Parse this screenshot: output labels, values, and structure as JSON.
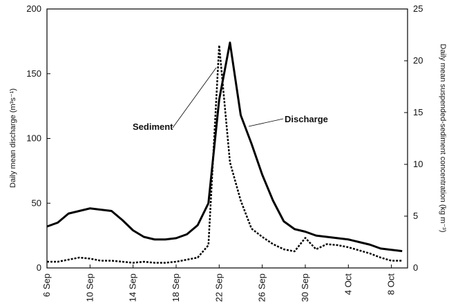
{
  "chart_data": {
    "type": "line",
    "x": [
      0,
      1,
      2,
      3,
      4,
      5,
      6,
      7,
      8,
      9,
      10,
      11,
      12,
      13,
      14,
      15,
      16,
      17,
      18,
      19,
      20,
      21,
      22,
      23,
      24,
      25,
      26,
      27,
      28,
      29,
      30,
      31,
      32,
      33
    ],
    "xlim": [
      0,
      33.5
    ],
    "xticks": [
      {
        "value": 0,
        "label": "6 Sep"
      },
      {
        "value": 4,
        "label": "10 Sep"
      },
      {
        "value": 8,
        "label": "14 Sep"
      },
      {
        "value": 12,
        "label": "18 Sep"
      },
      {
        "value": 16,
        "label": "22 Sep"
      },
      {
        "value": 20,
        "label": "26 Sep"
      },
      {
        "value": 24,
        "label": "30 Sep"
      },
      {
        "value": 28,
        "label": "4 Oct"
      },
      {
        "value": 32,
        "label": "8 Oct"
      }
    ],
    "ylim": [
      0,
      200
    ],
    "yticks": [
      0,
      50,
      100,
      150,
      200
    ],
    "y2lim": [
      0,
      25
    ],
    "y2ticks": [
      0,
      5,
      10,
      15,
      20,
      25
    ],
    "ylabel": "Daily mean discharge (m³s⁻¹)",
    "y2label": "Daily mean suspended-sediment concentration (kg m⁻³)",
    "series": [
      {
        "name": "Discharge",
        "color": "#000000",
        "dash": false,
        "values": [
          32,
          35,
          42,
          44,
          46,
          45,
          44,
          37,
          29,
          24,
          22,
          22,
          23,
          26,
          33,
          50,
          130,
          174,
          118,
          96,
          72,
          52,
          36,
          30,
          28,
          25,
          24,
          23,
          22,
          20,
          18,
          15,
          14,
          13
        ]
      },
      {
        "name": "Sediment",
        "color": "#000000",
        "dash": true,
        "axis": "y2",
        "values": [
          0.6,
          0.6,
          0.8,
          1.0,
          0.9,
          0.7,
          0.7,
          0.6,
          0.5,
          0.6,
          0.5,
          0.5,
          0.6,
          0.8,
          1.0,
          2.2,
          21.5,
          10.2,
          6.5,
          3.8,
          3.0,
          2.3,
          1.8,
          1.6,
          2.9,
          1.8,
          2.3,
          2.2,
          2.0,
          1.7,
          1.4,
          1.0,
          0.7,
          0.7
        ]
      }
    ]
  }
}
